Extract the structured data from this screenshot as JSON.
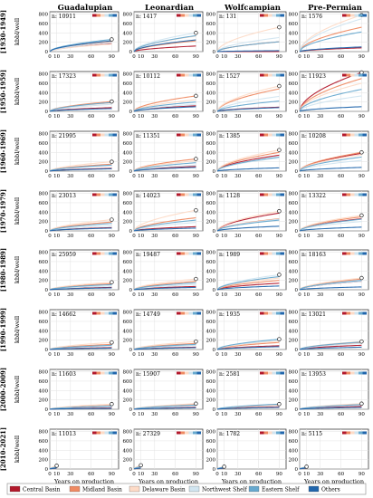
{
  "figure": {
    "columns": [
      "Guadalupian",
      "Leonardian",
      "Wolfcampian",
      "Pre-Permian"
    ],
    "rows": [
      "[1930-1949]",
      "[1950-1959]",
      "[1960-1969]",
      "[1970-1979]",
      "[1980-1989]",
      "[1990-1999]",
      "[2000-2009]",
      "[2010-2021]"
    ],
    "ylabel": "kbbl/well",
    "xlabel": "Years on production",
    "n_prefix": "n:",
    "colors": {
      "Central Basin": "#b2182b",
      "Midland Basin": "#ef8a62",
      "Delaware Basin": "#fddbc7",
      "Northwest Shelf": "#d1e5f0",
      "Eastern Shelf": "#67a9cf",
      "Others": "#2166ac"
    }
  },
  "chart_data": {
    "type": "line",
    "layout": "small-multiples grid, 8 rows x 4 columns",
    "xticks": [
      0,
      10,
      30,
      60,
      90
    ],
    "xlim": [
      0,
      100
    ],
    "yticks": [
      0,
      200,
      400,
      600,
      800
    ],
    "ylim": [
      0,
      850
    ],
    "grid": true,
    "legend": {
      "placement": "bottom",
      "entries": [
        "Central Basin",
        "Midland Basin",
        "Delaware Basin",
        "Northwest Shelf",
        "Eastern Shelf",
        "Others"
      ]
    },
    "series_order": [
      "Central Basin",
      "Midland Basin",
      "Delaware Basin",
      "Northwest Shelf",
      "Eastern Shelf",
      "Others"
    ],
    "panels": [
      {
        "row": "[1930-1949]",
        "column": "Guadalupian",
        "n": "10911",
        "x_end": [
          90,
          90,
          90,
          90,
          90,
          90
        ],
        "y_end": [
          170,
          220,
          160,
          190,
          260,
          230
        ]
      },
      {
        "row": "[1930-1949]",
        "column": "Leonardian",
        "n": "1417",
        "x_end": [
          90,
          90,
          90,
          90,
          90,
          90
        ],
        "y_end": [
          120,
          230,
          330,
          400,
          340,
          250
        ]
      },
      {
        "row": "[1930-1949]",
        "column": "Wolfcampian",
        "n": "131",
        "x_end": [
          90,
          90,
          90,
          90,
          90,
          90
        ],
        "y_end": [
          0,
          210,
          520,
          300,
          210,
          20
        ]
      },
      {
        "row": "[1930-1949]",
        "column": "Pre-Permian",
        "n": "1576",
        "x_end": [
          90,
          90,
          90,
          90,
          90,
          90
        ],
        "y_end": [
          80,
          520,
          780,
          700,
          420,
          100
        ]
      },
      {
        "row": "[1950-1959]",
        "column": "Guadalupian",
        "n": "17323",
        "x_end": [
          90,
          90,
          90,
          90,
          90,
          90
        ],
        "y_end": [
          80,
          210,
          180,
          150,
          190,
          60
        ]
      },
      {
        "row": "[1950-1959]",
        "column": "Leonardian",
        "n": "10112",
        "x_end": [
          90,
          90,
          90,
          90,
          90,
          90
        ],
        "y_end": [
          120,
          330,
          250,
          150,
          200,
          100
        ]
      },
      {
        "row": "[1950-1959]",
        "column": "Wolfcampian",
        "n": "1527",
        "x_end": [
          90,
          90,
          90,
          90,
          90,
          90
        ],
        "y_end": [
          90,
          480,
          540,
          320,
          220,
          80
        ]
      },
      {
        "row": "[1950-1959]",
        "column": "Pre-Permian",
        "n": "11923",
        "x_end": [
          90,
          90,
          90,
          90,
          90,
          90
        ],
        "y_end": [
          830,
          700,
          600,
          330,
          470,
          100
        ]
      },
      {
        "row": "[1960-1969]",
        "column": "Guadalupian",
        "n": "21995",
        "x_end": [
          90,
          90,
          90,
          90,
          90,
          90
        ],
        "y_end": [
          60,
          150,
          200,
          120,
          130,
          50
        ]
      },
      {
        "row": "[1960-1969]",
        "column": "Leonardian",
        "n": "11351",
        "x_end": [
          90,
          90,
          90,
          90,
          90,
          90
        ],
        "y_end": [
          100,
          260,
          220,
          130,
          180,
          80
        ]
      },
      {
        "row": "[1960-1969]",
        "column": "Wolfcampian",
        "n": "1385",
        "x_end": [
          90,
          90,
          90,
          90,
          90,
          90
        ],
        "y_end": [
          340,
          400,
          450,
          280,
          300,
          70
        ]
      },
      {
        "row": "[1960-1969]",
        "column": "Pre-Permian",
        "n": "10208",
        "x_end": [
          90,
          90,
          90,
          90,
          90,
          90
        ],
        "y_end": [
          380,
          400,
          350,
          230,
          300,
          80
        ]
      },
      {
        "row": "[1970-1979]",
        "column": "Guadalupian",
        "n": "23013",
        "x_end": [
          90,
          90,
          90,
          90,
          90,
          90
        ],
        "y_end": [
          70,
          190,
          240,
          110,
          160,
          60
        ]
      },
      {
        "row": "[1970-1979]",
        "column": "Leonardian",
        "n": "14023",
        "x_end": [
          90,
          90,
          90,
          90,
          90,
          90
        ],
        "y_end": [
          90,
          280,
          440,
          180,
          230,
          60
        ]
      },
      {
        "row": "[1970-1979]",
        "column": "Wolfcampian",
        "n": "1128",
        "x_end": [
          90,
          90,
          90,
          90,
          90,
          90
        ],
        "y_end": [
          380,
          260,
          420,
          250,
          230,
          100
        ]
      },
      {
        "row": "[1970-1979]",
        "column": "Pre-Permian",
        "n": "13322",
        "x_end": [
          90,
          90,
          90,
          90,
          90,
          90
        ],
        "y_end": [
          260,
          300,
          330,
          200,
          250,
          80
        ]
      },
      {
        "row": "[1980-1989]",
        "column": "Guadalupian",
        "n": "25959",
        "x_end": [
          90,
          90,
          90,
          90,
          90,
          90
        ],
        "y_end": [
          50,
          130,
          160,
          80,
          110,
          40
        ]
      },
      {
        "row": "[1980-1989]",
        "column": "Leonardian",
        "n": "19487",
        "x_end": [
          90,
          90,
          90,
          90,
          90,
          90
        ],
        "y_end": [
          70,
          180,
          230,
          110,
          150,
          50
        ]
      },
      {
        "row": "[1980-1989]",
        "column": "Wolfcampian",
        "n": "1989",
        "x_end": [
          90,
          90,
          90,
          90,
          90,
          90
        ],
        "y_end": [
          140,
          200,
          250,
          320,
          280,
          80
        ]
      },
      {
        "row": "[1980-1989]",
        "column": "Pre-Permian",
        "n": "18163",
        "x_end": [
          90,
          90,
          90,
          90,
          90,
          90
        ],
        "y_end": [
          180,
          230,
          250,
          180,
          200,
          60
        ]
      },
      {
        "row": "[1990-1999]",
        "column": "Guadalupian",
        "n": "14662",
        "x_end": [
          90,
          90,
          90,
          90,
          90,
          90
        ],
        "y_end": [
          40,
          110,
          150,
          80,
          90,
          30
        ]
      },
      {
        "row": "[1990-1999]",
        "column": "Leonardian",
        "n": "14749",
        "x_end": [
          90,
          90,
          90,
          90,
          90,
          90
        ],
        "y_end": [
          50,
          130,
          170,
          90,
          110,
          40
        ]
      },
      {
        "row": "[1990-1999]",
        "column": "Wolfcampian",
        "n": "1935",
        "x_end": [
          90,
          90,
          90,
          90,
          90,
          90
        ],
        "y_end": [
          80,
          150,
          180,
          200,
          220,
          60
        ]
      },
      {
        "row": "[1990-1999]",
        "column": "Pre-Permian",
        "n": "13021",
        "x_end": [
          90,
          90,
          90,
          90,
          90,
          90
        ],
        "y_end": [
          90,
          150,
          170,
          130,
          160,
          50
        ]
      },
      {
        "row": "[2000-2009]",
        "column": "Guadalupian",
        "n": "11603",
        "x_end": [
          90,
          90,
          90,
          90,
          90,
          90
        ],
        "y_end": [
          30,
          80,
          110,
          60,
          70,
          20
        ]
      },
      {
        "row": "[2000-2009]",
        "column": "Leonardian",
        "n": "15907",
        "x_end": [
          90,
          90,
          90,
          90,
          90,
          90
        ],
        "y_end": [
          40,
          100,
          120,
          70,
          90,
          30
        ]
      },
      {
        "row": "[2000-2009]",
        "column": "Wolfcampian",
        "n": "2581",
        "x_end": [
          90,
          90,
          90,
          90,
          90,
          90
        ],
        "y_end": [
          50,
          90,
          110,
          100,
          110,
          40
        ]
      },
      {
        "row": "[2000-2009]",
        "column": "Pre-Permian",
        "n": "13953",
        "x_end": [
          90,
          90,
          90,
          90,
          90,
          90
        ],
        "y_end": [
          60,
          110,
          120,
          90,
          100,
          40
        ]
      },
      {
        "row": "[2010-2021]",
        "column": "Guadalupian",
        "n": "11013",
        "x_end": [
          10,
          10,
          10,
          10,
          10,
          10
        ],
        "y_end": [
          20,
          50,
          70,
          40,
          40,
          20
        ]
      },
      {
        "row": "[2010-2021]",
        "column": "Leonardian",
        "n": "27329",
        "x_end": [
          10,
          10,
          10,
          10,
          10,
          10
        ],
        "y_end": [
          20,
          60,
          80,
          40,
          50,
          20
        ]
      },
      {
        "row": "[2010-2021]",
        "column": "Wolfcampian",
        "n": "1782",
        "x_end": [
          10,
          10,
          10,
          10,
          10,
          10
        ],
        "y_end": [
          20,
          40,
          50,
          40,
          40,
          20
        ]
      },
      {
        "row": "[2010-2021]",
        "column": "Pre-Permian",
        "n": "5115",
        "x_end": [
          10,
          10,
          10,
          10,
          10,
          10
        ],
        "y_end": [
          20,
          40,
          50,
          40,
          40,
          20
        ]
      }
    ]
  }
}
